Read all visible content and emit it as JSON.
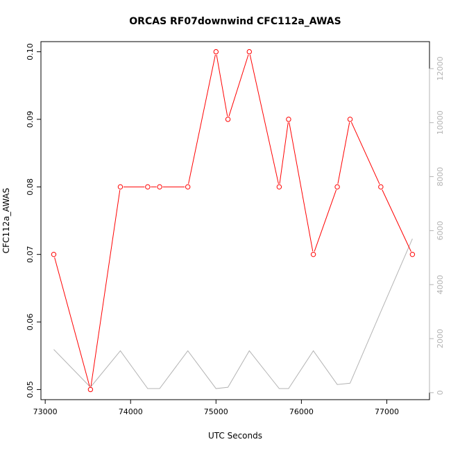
{
  "chart_data": {
    "type": "line",
    "title": "ORCAS RF07downwind CFC112a_AWAS",
    "xlabel": "UTC Seconds",
    "ylabel": "CFC112a_AWAS",
    "xlim": [
      72950,
      77500
    ],
    "ylim": [
      0.0485,
      0.1015
    ],
    "y2lim": [
      -260,
      13000
    ],
    "x_ticks": [
      73000,
      74000,
      75000,
      76000,
      77000
    ],
    "y_ticks": [
      0.05,
      0.06,
      0.07,
      0.08,
      0.09,
      0.1
    ],
    "y_tick_labels": [
      "0.05",
      "0.06",
      "0.07",
      "0.08",
      "0.09",
      "0.10"
    ],
    "y2_ticks": [
      0,
      2000,
      4000,
      6000,
      8000,
      10000,
      12000
    ],
    "series": [
      {
        "color": "#ff0000",
        "axis": "left",
        "markers": true,
        "x": [
          73100,
          73530,
          73880,
          74200,
          74340,
          74670,
          75000,
          75140,
          75390,
          75740,
          75850,
          76140,
          76420,
          76570,
          76930,
          77300
        ],
        "y": [
          0.07,
          0.05,
          0.08,
          0.08,
          0.08,
          0.08,
          0.1,
          0.09,
          0.1,
          0.08,
          0.09,
          0.07,
          0.08,
          0.09,
          0.08,
          0.07
        ]
      },
      {
        "color": "#b3b3b3",
        "axis": "right",
        "markers": false,
        "x": [
          73100,
          73530,
          73880,
          74200,
          74340,
          74670,
          75000,
          75140,
          75390,
          75740,
          75850,
          76140,
          76420,
          76570,
          76930,
          77300
        ],
        "y": [
          1600,
          200,
          1550,
          150,
          150,
          1550,
          150,
          200,
          1550,
          150,
          150,
          1550,
          300,
          350,
          3000,
          5700
        ]
      }
    ]
  }
}
